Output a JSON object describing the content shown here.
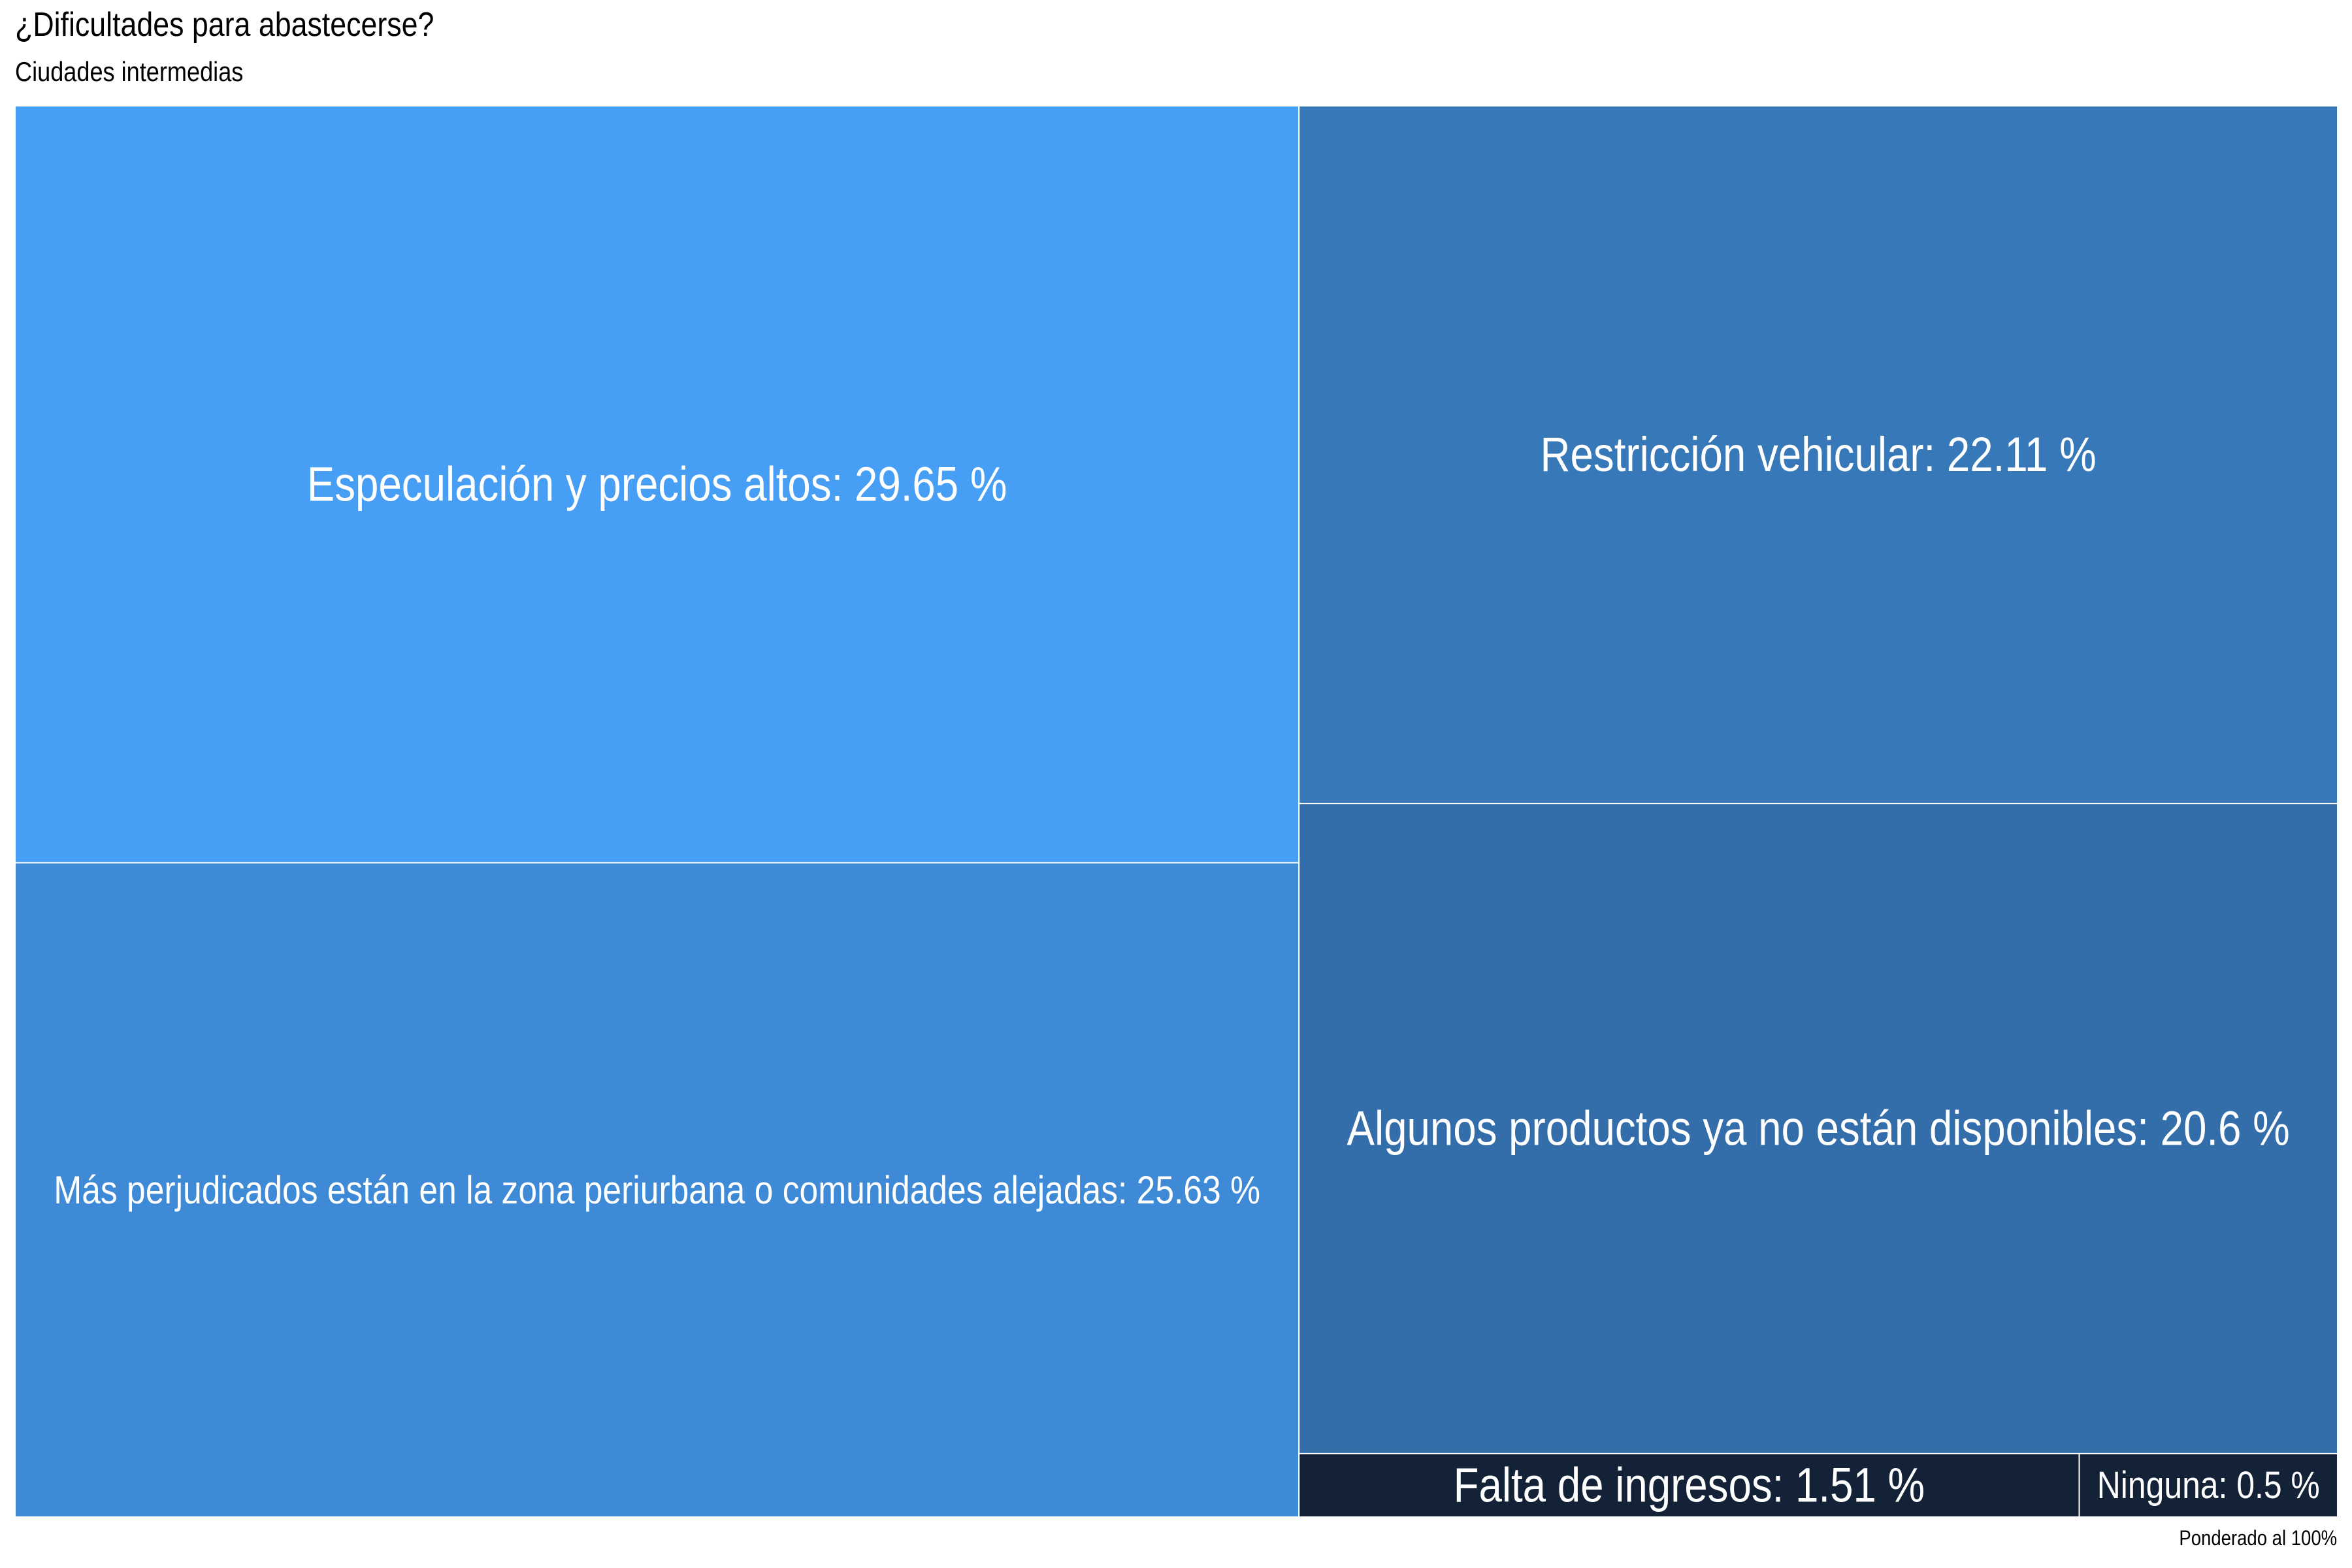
{
  "chart_data": {
    "type": "treemap",
    "title": "¿Dificultades para abastecerse?",
    "subtitle": "Ciudades intermedias",
    "caption": "Ponderado al 100%",
    "items": [
      {
        "label": "Especulación y precios altos",
        "value": 29.65,
        "display": "Especulación y precios altos: 29.65 %",
        "color": "#479EF5"
      },
      {
        "label": "Más perjudicados están en la zona periurbana o comunidades alejadas",
        "value": 25.63,
        "display": "Más perjudicados están en la zona periurbana o comunidades alejadas: 25.63 %",
        "color": "#3F8AD6"
      },
      {
        "label": "Restricción vehicular",
        "value": 22.11,
        "display": "Restricción vehicular: 22.11 %",
        "color": "#3778B8"
      },
      {
        "label": "Algunos productos ya no están disponibles",
        "value": 20.6,
        "display": "Algunos productos ya no están disponibles: 20.6 %",
        "color": "#336DAA"
      },
      {
        "label": "Falta de ingresos",
        "value": 1.51,
        "display": "Falta de ingresos: 1.51 %",
        "color": "#132236"
      },
      {
        "label": "Ninguna",
        "value": 0.5,
        "display": "Ninguna: 0.5 %",
        "color": "#132236"
      }
    ]
  }
}
